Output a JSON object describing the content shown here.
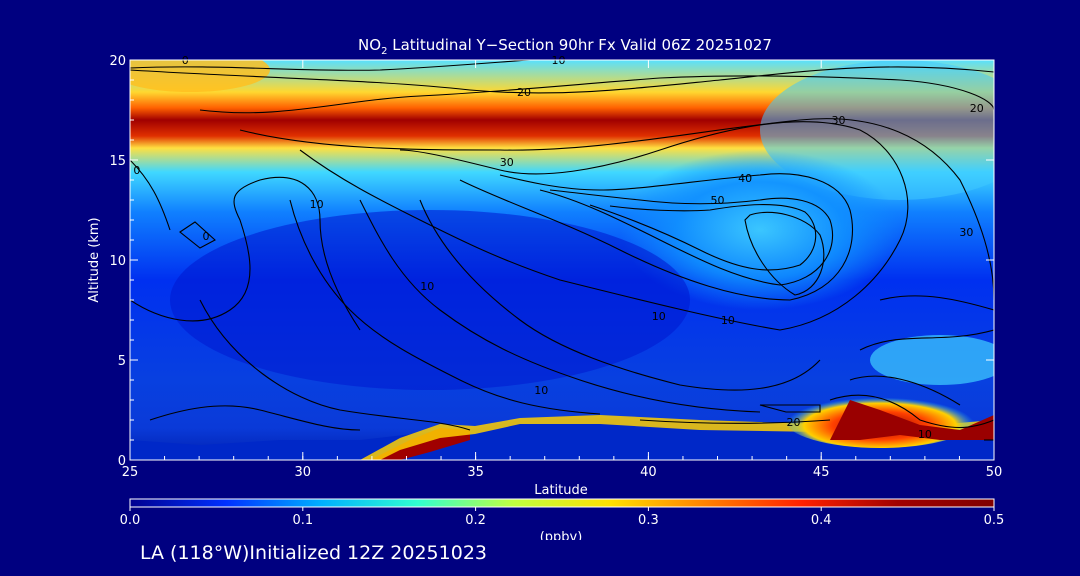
{
  "chart_data": {
    "type": "heatmap",
    "title_main": "NO",
    "title_sub": "2",
    "title_rest": " Latitudinal Y−Section 90hr  Fx Valid 06Z 20251027",
    "xlabel": "Latitude",
    "ylabel": "Altitude (km)",
    "xlim": [
      25,
      50
    ],
    "ylim": [
      0,
      20
    ],
    "xticks": [
      "25",
      "30",
      "35",
      "40",
      "45",
      "50"
    ],
    "yticks": [
      "0",
      "5",
      "10",
      "15",
      "20"
    ],
    "colorbar": {
      "range": [
        0.0,
        0.5
      ],
      "ticks": [
        "0.0",
        "0.1",
        "0.2",
        "0.3",
        "0.4",
        "0.5"
      ],
      "unit": "(ppbv)",
      "colors": [
        "#00008f",
        "#0030ff",
        "#00b0ff",
        "#30ffd0",
        "#c0ff40",
        "#ffe000",
        "#ff8000",
        "#ff2000",
        "#a00000",
        "#800000"
      ]
    },
    "contour_labels": [
      {
        "text": "0",
        "x": 26.6,
        "y": 20.0
      },
      {
        "text": "10",
        "x": 37.4,
        "y": 20.0
      },
      {
        "text": "20",
        "x": 36.4,
        "y": 18.4
      },
      {
        "text": "20",
        "x": 49.5,
        "y": 17.6
      },
      {
        "text": "30",
        "x": 35.9,
        "y": 14.9
      },
      {
        "text": "30",
        "x": 45.5,
        "y": 17.0
      },
      {
        "text": "30",
        "x": 49.2,
        "y": 11.4
      },
      {
        "text": "40",
        "x": 42.8,
        "y": 14.1
      },
      {
        "text": "50",
        "x": 42.0,
        "y": 13.0
      },
      {
        "text": "10",
        "x": 30.4,
        "y": 12.8
      },
      {
        "text": "0",
        "x": 25.2,
        "y": 14.5
      },
      {
        "text": "0",
        "x": 27.2,
        "y": 11.2
      },
      {
        "text": "10",
        "x": 33.6,
        "y": 8.7
      },
      {
        "text": "10",
        "x": 40.3,
        "y": 7.2
      },
      {
        "text": "10",
        "x": 42.3,
        "y": 7.0
      },
      {
        "text": "10",
        "x": 36.9,
        "y": 3.5
      },
      {
        "text": "20",
        "x": 44.2,
        "y": 1.9
      },
      {
        "text": "10",
        "x": 48.0,
        "y": 1.3
      }
    ],
    "high_regions": [
      {
        "label": "stratospheric band",
        "lat": [
          25,
          45.5
        ],
        "alt": [
          15.5,
          18.0
        ],
        "peak": 0.5
      },
      {
        "label": "low-level plume",
        "lat": [
          32,
          36
        ],
        "alt": [
          0,
          1.5
        ],
        "peak": 0.5
      },
      {
        "label": "low-level plume",
        "lat": [
          44.5,
          50
        ],
        "alt": [
          1,
          3.5
        ],
        "peak": 0.5
      }
    ]
  },
  "footer": "LA (118°W)Initialized 12Z 20251023"
}
